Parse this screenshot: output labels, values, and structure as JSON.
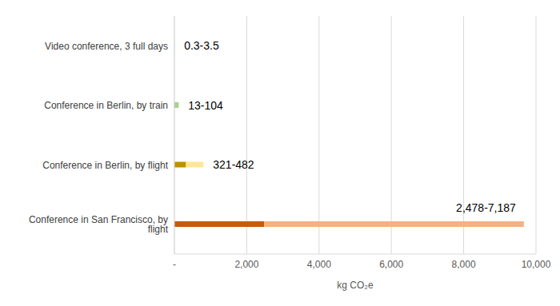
{
  "chart_data": {
    "type": "bar",
    "orientation": "horizontal",
    "stacked": true,
    "grid": true,
    "categories": [
      "Video conference, 3 full days",
      "Conference in Berlin, by train",
      "Conference in Berlin, by flight",
      "Conference in San Francisco, by flight"
    ],
    "series": [
      {
        "values": [
          0.3,
          13,
          321,
          2478
        ],
        "colors": [
          "#4472c4",
          "#548235",
          "#bf9000",
          "#c55a11"
        ]
      },
      {
        "values": [
          3.5,
          104,
          482,
          7187
        ],
        "colors": [
          "#8faadc",
          "#a9d18e",
          "#ffe699",
          "#f4b183"
        ]
      }
    ],
    "annotations": [
      "0.3-3.5",
      "13-104",
      "321-482",
      "2,478-7,187"
    ],
    "xlabel": "kg CO₂e",
    "xlim": [
      0,
      10000
    ],
    "xticks": [
      {
        "value": 0,
        "label": "-"
      },
      {
        "value": 2000,
        "label": "2,000"
      },
      {
        "value": 4000,
        "label": "4,000"
      },
      {
        "value": 6000,
        "label": "6,000"
      },
      {
        "value": 8000,
        "label": "8,000"
      },
      {
        "value": 10000,
        "label": "10,000"
      }
    ]
  }
}
